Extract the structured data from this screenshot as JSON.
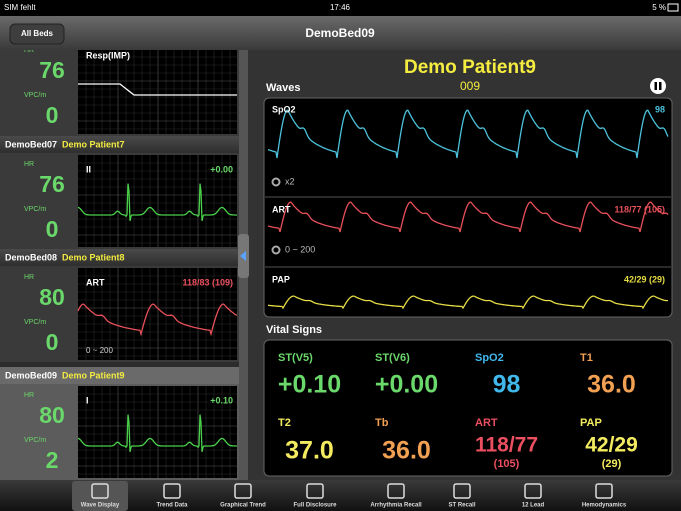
{
  "status_bar": {
    "carrier": "SIM fehlt",
    "time": "17:46",
    "battery": "5 %"
  },
  "nav": {
    "back": "All Beds",
    "title": "DemoBed09"
  },
  "beds": [
    {
      "hr_label": "HR",
      "hr": "76",
      "wave_label": "Resp(IMP)",
      "vpc_label": "VPC/m",
      "vpc": "0"
    },
    {
      "bed": "DemoBed07",
      "patient": "Demo Patient7",
      "hr_label": "HR",
      "hr": "76",
      "wave_label": "II",
      "wave_value": "+0.00",
      "vpc_label": "VPC/m",
      "vpc": "0"
    },
    {
      "bed": "DemoBed08",
      "patient": "Demo Patient8",
      "hr_label": "HR",
      "hr": "80",
      "wave_label": "ART",
      "wave_value": "118/83 (109)",
      "vpc_label": "VPC/m",
      "vpc": "0",
      "scale": "0 ~ 200"
    },
    {
      "bed": "DemoBed09",
      "patient": "Demo Patient9",
      "hr_label": "HR",
      "hr": "80",
      "wave_label": "I",
      "wave_value": "+0.10",
      "vpc_label": "VPC/m",
      "vpc": "2"
    }
  ],
  "patient": {
    "name": "Demo Patient9",
    "id": "009"
  },
  "waves": {
    "title": "Waves",
    "strips": [
      {
        "label": "SpO2",
        "value": "98",
        "gain": "x2",
        "color": "#4cc3dc"
      },
      {
        "label": "ART",
        "value": "118/77 (105)",
        "scale": "0 ~ 200",
        "color": "#e8505a"
      },
      {
        "label": "PAP",
        "value": "42/29 (29)",
        "color": "#e6dc46"
      }
    ]
  },
  "vitals": {
    "title": "Vital Signs",
    "items": [
      {
        "label": "ST(V5)",
        "value": "+0.10",
        "color": "#6ad86a"
      },
      {
        "label": "ST(V6)",
        "value": "+0.00",
        "color": "#6ad86a"
      },
      {
        "label": "SpO2",
        "value": "98",
        "color": "#40b8ec"
      },
      {
        "label": "T1",
        "value": "36.0",
        "color": "#f2a052"
      },
      {
        "label": "T2",
        "value": "37.0",
        "color": "#f4ec60"
      },
      {
        "label": "Tb",
        "value": "36.0",
        "color": "#f2a052"
      },
      {
        "label": "ART",
        "value": "118/77",
        "sub": "(105)",
        "color": "#ec5060"
      },
      {
        "label": "PAP",
        "value": "42/29",
        "sub": "(29)",
        "color": "#f4ec60"
      }
    ]
  },
  "tabs": [
    "Wave Display",
    "Trend Data",
    "Graphical Trend",
    "Full Disclosure",
    "Arrhythmia Recall",
    "ST Recall",
    "12 Lead",
    "Hemodynamics"
  ]
}
